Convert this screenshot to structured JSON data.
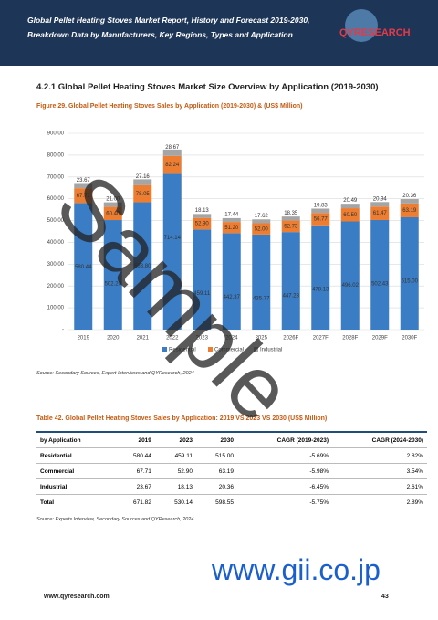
{
  "header": {
    "title_line1": "Global Pellet Heating Stoves Market Report, History and Forecast 2019-2030,",
    "title_line2": "Breakdown Data by Manufacturers, Key Regions, Types and Application",
    "logo": "QYRESEARCH"
  },
  "section_title": "4.2.1  Global Pellet Heating Stoves Market Size Overview by Application (2019-2030)",
  "figure_caption": "Figure 29.   Global Pellet Heating Stoves Sales by Application (2019-2030) & (US$ Million)",
  "chart_data": {
    "type": "stacked_bar",
    "categories": [
      "2019",
      "2020",
      "2021",
      "2022",
      "2023",
      "2024",
      "2025",
      "2026F",
      "2027F",
      "2028F",
      "2029F",
      "2030F"
    ],
    "series": [
      {
        "name": "Residential",
        "color": "#3b7dc4",
        "values": [
          580.44,
          502.2,
          583.8,
          714.14,
          459.11,
          442.37,
          435.77,
          447.28,
          478.13,
          496.02,
          502.43,
          515.0
        ],
        "value_labels": [
          "580.44",
          "502.20",
          "583.80",
          "714.14",
          "459.11",
          "442.37",
          "435.77",
          "447.28",
          "478.13",
          "496.02",
          "502.43",
          "515.00"
        ]
      },
      {
        "name": "Commercial",
        "color": "#ed7d31",
        "values": [
          67.71,
          60.4,
          78.05,
          82.24,
          52.9,
          51.2,
          52.0,
          52.73,
          56.77,
          60.5,
          61.47,
          63.19
        ],
        "value_labels": [
          "67.71",
          "60.40",
          "78.05",
          "82.24",
          "52.90",
          "51.20",
          "52.00",
          "52.73",
          "56.77",
          "60.50",
          "61.47",
          "63.19"
        ]
      },
      {
        "name": "Industrial",
        "color": "#a5a5a5",
        "values": [
          23.67,
          21.0,
          27.16,
          28.67,
          18.13,
          17.44,
          17.62,
          18.35,
          19.83,
          20.49,
          20.94,
          20.36
        ],
        "value_labels": [
          "23.67",
          "21.00",
          "27.16",
          "28.67",
          "18.13",
          "17.44",
          "17.62",
          "18.35",
          "19.83",
          "20.49",
          "20.94",
          "20.36"
        ]
      }
    ],
    "ylim": [
      0,
      900
    ],
    "yticks": [
      {
        "value": 0,
        "label": "-"
      },
      {
        "value": 100,
        "label": "100.00"
      },
      {
        "value": 200,
        "label": "200.00"
      },
      {
        "value": 300,
        "label": "300.00"
      },
      {
        "value": 400,
        "label": "400.00"
      },
      {
        "value": 500,
        "label": "500.00"
      },
      {
        "value": 600,
        "label": "600.00"
      },
      {
        "value": 700,
        "label": "700.00"
      },
      {
        "value": 800,
        "label": "800.00"
      },
      {
        "value": 900,
        "label": "900.00"
      }
    ],
    "grid": true,
    "legend": "bottom"
  },
  "figure_source": "Source: Secondary Sources, Expert Interviews and QYResearch, 2024",
  "table_caption": "Table 42.   Global Pellet Heating Stoves Sales by Application: 2019 VS 2023 VS 2030 (US$ Million)",
  "table": {
    "header": [
      "by Application",
      "2019",
      "2023",
      "2030",
      "CAGR (2019-2023)",
      "CAGR (2024-2030)"
    ],
    "rows": [
      [
        "Residential",
        "580.44",
        "459.11",
        "515.00",
        "-5.69%",
        "2.82%"
      ],
      [
        "Commercial",
        "67.71",
        "52.90",
        "63.19",
        "-5.98%",
        "3.54%"
      ],
      [
        "Industrial",
        "23.67",
        "18.13",
        "20.36",
        "-6.45%",
        "2.61%"
      ],
      [
        "Total",
        "671.82",
        "530.14",
        "598.55",
        "-5.75%",
        "2.89%"
      ]
    ]
  },
  "table_source": "Source: Experts Interview, Secondary Sources and QYResearch, 2024",
  "watermark": "Sample",
  "watermark_site": "www.gii.co.jp",
  "footer": {
    "site": "www.qyresearch.com",
    "page": "43"
  }
}
